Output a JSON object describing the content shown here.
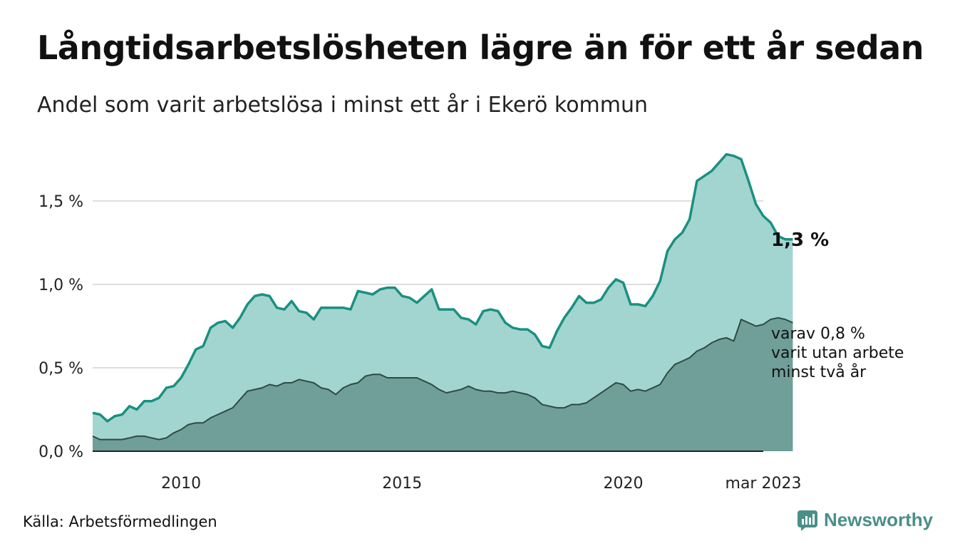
{
  "header": {
    "title": "Långtidsarbetslösheten lägre än för ett år sedan",
    "subtitle": "Andel som varit arbetslösa i minst ett år i Ekerö kommun"
  },
  "footer": {
    "source": "Källa: Arbetsförmedlingen",
    "brand": "Newsworthy"
  },
  "colors": {
    "total_line": "#1a9080",
    "total_fill": "#a3d5d0",
    "long_fill": "#6f9f98",
    "long_line": "#2e4a45",
    "grid": "#dddddd"
  },
  "chart_data": {
    "type": "area",
    "x_start": "2008-01",
    "x_end": "2023-03",
    "y_unit": "%",
    "ylim": [
      0,
      1.85
    ],
    "y_ticks": [
      0.0,
      0.5,
      1.0,
      1.5
    ],
    "y_tick_labels": [
      "0,0 %",
      "0,5 %",
      "1,0 %",
      "1,5 %"
    ],
    "x_ticks": [
      "2010-01",
      "2015-01",
      "2020-01",
      "2023-03"
    ],
    "x_tick_labels": [
      "2010",
      "2015",
      "2020",
      "mar 2023"
    ],
    "grid": true,
    "series": [
      {
        "key": "total",
        "end_label": "1,3 %",
        "points": [
          [
            "2008-01",
            0.23
          ],
          [
            "2008-03",
            0.22
          ],
          [
            "2008-05",
            0.18
          ],
          [
            "2008-07",
            0.21
          ],
          [
            "2008-09",
            0.22
          ],
          [
            "2008-11",
            0.27
          ],
          [
            "2009-01",
            0.25
          ],
          [
            "2009-03",
            0.3
          ],
          [
            "2009-05",
            0.3
          ],
          [
            "2009-07",
            0.32
          ],
          [
            "2009-09",
            0.38
          ],
          [
            "2009-11",
            0.39
          ],
          [
            "2010-01",
            0.44
          ],
          [
            "2010-03",
            0.52
          ],
          [
            "2010-05",
            0.61
          ],
          [
            "2010-07",
            0.63
          ],
          [
            "2010-09",
            0.74
          ],
          [
            "2010-11",
            0.77
          ],
          [
            "2011-01",
            0.78
          ],
          [
            "2011-03",
            0.74
          ],
          [
            "2011-05",
            0.8
          ],
          [
            "2011-07",
            0.88
          ],
          [
            "2011-09",
            0.93
          ],
          [
            "2011-11",
            0.94
          ],
          [
            "2012-01",
            0.93
          ],
          [
            "2012-03",
            0.86
          ],
          [
            "2012-05",
            0.85
          ],
          [
            "2012-07",
            0.9
          ],
          [
            "2012-09",
            0.84
          ],
          [
            "2012-11",
            0.83
          ],
          [
            "2013-01",
            0.79
          ],
          [
            "2013-03",
            0.86
          ],
          [
            "2013-05",
            0.86
          ],
          [
            "2013-07",
            0.86
          ],
          [
            "2013-09",
            0.86
          ],
          [
            "2013-11",
            0.85
          ],
          [
            "2014-01",
            0.96
          ],
          [
            "2014-03",
            0.95
          ],
          [
            "2014-05",
            0.94
          ],
          [
            "2014-07",
            0.97
          ],
          [
            "2014-09",
            0.98
          ],
          [
            "2014-11",
            0.98
          ],
          [
            "2015-01",
            0.93
          ],
          [
            "2015-03",
            0.92
          ],
          [
            "2015-05",
            0.89
          ],
          [
            "2015-07",
            0.93
          ],
          [
            "2015-09",
            0.97
          ],
          [
            "2015-11",
            0.85
          ],
          [
            "2016-01",
            0.85
          ],
          [
            "2016-03",
            0.85
          ],
          [
            "2016-05",
            0.8
          ],
          [
            "2016-07",
            0.79
          ],
          [
            "2016-09",
            0.76
          ],
          [
            "2016-11",
            0.84
          ],
          [
            "2017-01",
            0.85
          ],
          [
            "2017-03",
            0.84
          ],
          [
            "2017-05",
            0.77
          ],
          [
            "2017-07",
            0.74
          ],
          [
            "2017-09",
            0.73
          ],
          [
            "2017-11",
            0.73
          ],
          [
            "2018-01",
            0.7
          ],
          [
            "2018-03",
            0.63
          ],
          [
            "2018-05",
            0.62
          ],
          [
            "2018-07",
            0.72
          ],
          [
            "2018-09",
            0.8
          ],
          [
            "2018-11",
            0.86
          ],
          [
            "2019-01",
            0.93
          ],
          [
            "2019-03",
            0.89
          ],
          [
            "2019-05",
            0.89
          ],
          [
            "2019-07",
            0.91
          ],
          [
            "2019-09",
            0.98
          ],
          [
            "2019-11",
            1.03
          ],
          [
            "2020-01",
            1.01
          ],
          [
            "2020-03",
            0.88
          ],
          [
            "2020-05",
            0.88
          ],
          [
            "2020-07",
            0.87
          ],
          [
            "2020-09",
            0.93
          ],
          [
            "2020-11",
            1.02
          ],
          [
            "2021-01",
            1.2
          ],
          [
            "2021-03",
            1.27
          ],
          [
            "2021-05",
            1.31
          ],
          [
            "2021-07",
            1.39
          ],
          [
            "2021-09",
            1.62
          ],
          [
            "2021-11",
            1.65
          ],
          [
            "2022-01",
            1.68
          ],
          [
            "2022-03",
            1.73
          ],
          [
            "2022-05",
            1.78
          ],
          [
            "2022-07",
            1.77
          ],
          [
            "2022-09",
            1.75
          ],
          [
            "2022-11",
            1.62
          ],
          [
            "2023-01",
            1.48
          ],
          [
            "2023-03",
            1.41
          ],
          [
            "2023-05",
            1.37
          ],
          [
            "2023-07",
            1.29
          ],
          [
            "2023-09",
            1.27
          ],
          [
            "2023-11",
            1.27
          ]
        ]
      },
      {
        "key": "long",
        "end_label": [
          "varav 0,8 %",
          "varit utan arbete",
          "minst två år"
        ],
        "points": [
          [
            "2008-01",
            0.09
          ],
          [
            "2008-03",
            0.07
          ],
          [
            "2008-05",
            0.07
          ],
          [
            "2008-07",
            0.07
          ],
          [
            "2008-09",
            0.07
          ],
          [
            "2008-11",
            0.08
          ],
          [
            "2009-01",
            0.09
          ],
          [
            "2009-03",
            0.09
          ],
          [
            "2009-05",
            0.08
          ],
          [
            "2009-07",
            0.07
          ],
          [
            "2009-09",
            0.08
          ],
          [
            "2009-11",
            0.11
          ],
          [
            "2010-01",
            0.13
          ],
          [
            "2010-03",
            0.16
          ],
          [
            "2010-05",
            0.17
          ],
          [
            "2010-07",
            0.17
          ],
          [
            "2010-09",
            0.2
          ],
          [
            "2010-11",
            0.22
          ],
          [
            "2011-01",
            0.24
          ],
          [
            "2011-03",
            0.26
          ],
          [
            "2011-05",
            0.31
          ],
          [
            "2011-07",
            0.36
          ],
          [
            "2011-09",
            0.37
          ],
          [
            "2011-11",
            0.38
          ],
          [
            "2012-01",
            0.4
          ],
          [
            "2012-03",
            0.39
          ],
          [
            "2012-05",
            0.41
          ],
          [
            "2012-07",
            0.41
          ],
          [
            "2012-09",
            0.43
          ],
          [
            "2012-11",
            0.42
          ],
          [
            "2013-01",
            0.41
          ],
          [
            "2013-03",
            0.38
          ],
          [
            "2013-05",
            0.37
          ],
          [
            "2013-07",
            0.34
          ],
          [
            "2013-09",
            0.38
          ],
          [
            "2013-11",
            0.4
          ],
          [
            "2014-01",
            0.41
          ],
          [
            "2014-03",
            0.45
          ],
          [
            "2014-05",
            0.46
          ],
          [
            "2014-07",
            0.46
          ],
          [
            "2014-09",
            0.44
          ],
          [
            "2014-11",
            0.44
          ],
          [
            "2015-01",
            0.44
          ],
          [
            "2015-03",
            0.44
          ],
          [
            "2015-05",
            0.44
          ],
          [
            "2015-07",
            0.42
          ],
          [
            "2015-09",
            0.4
          ],
          [
            "2015-11",
            0.37
          ],
          [
            "2016-01",
            0.35
          ],
          [
            "2016-03",
            0.36
          ],
          [
            "2016-05",
            0.37
          ],
          [
            "2016-07",
            0.39
          ],
          [
            "2016-09",
            0.37
          ],
          [
            "2016-11",
            0.36
          ],
          [
            "2017-01",
            0.36
          ],
          [
            "2017-03",
            0.35
          ],
          [
            "2017-05",
            0.35
          ],
          [
            "2017-07",
            0.36
          ],
          [
            "2017-09",
            0.35
          ],
          [
            "2017-11",
            0.34
          ],
          [
            "2018-01",
            0.32
          ],
          [
            "2018-03",
            0.28
          ],
          [
            "2018-05",
            0.27
          ],
          [
            "2018-07",
            0.26
          ],
          [
            "2018-09",
            0.26
          ],
          [
            "2018-11",
            0.28
          ],
          [
            "2019-01",
            0.28
          ],
          [
            "2019-03",
            0.29
          ],
          [
            "2019-05",
            0.32
          ],
          [
            "2019-07",
            0.35
          ],
          [
            "2019-09",
            0.38
          ],
          [
            "2019-11",
            0.41
          ],
          [
            "2020-01",
            0.4
          ],
          [
            "2020-03",
            0.36
          ],
          [
            "2020-05",
            0.37
          ],
          [
            "2020-07",
            0.36
          ],
          [
            "2020-09",
            0.38
          ],
          [
            "2020-11",
            0.4
          ],
          [
            "2021-01",
            0.47
          ],
          [
            "2021-03",
            0.52
          ],
          [
            "2021-05",
            0.54
          ],
          [
            "2021-07",
            0.56
          ],
          [
            "2021-09",
            0.6
          ],
          [
            "2021-11",
            0.62
          ],
          [
            "2022-01",
            0.65
          ],
          [
            "2022-03",
            0.67
          ],
          [
            "2022-05",
            0.68
          ],
          [
            "2022-07",
            0.66
          ],
          [
            "2022-09",
            0.79
          ],
          [
            "2022-11",
            0.77
          ],
          [
            "2023-01",
            0.75
          ],
          [
            "2023-03",
            0.76
          ],
          [
            "2023-05",
            0.79
          ],
          [
            "2023-07",
            0.8
          ],
          [
            "2023-09",
            0.79
          ],
          [
            "2023-11",
            0.77
          ]
        ]
      }
    ]
  }
}
